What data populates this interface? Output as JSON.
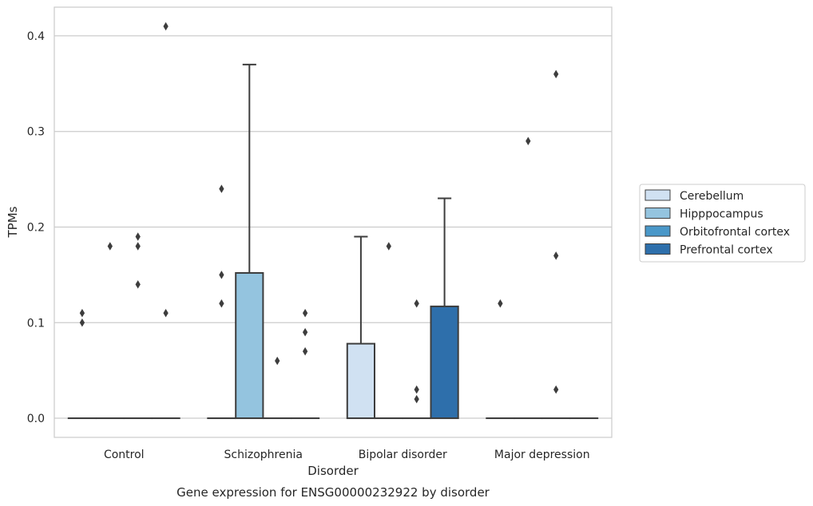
{
  "chart_data": {
    "type": "box",
    "title": "",
    "caption": "Gene expression for ENSG00000232922 by disorder",
    "xlabel": "Disorder",
    "ylabel": "TPMs",
    "ylim": [
      -0.02,
      0.43
    ],
    "yticks": [
      0.0,
      0.1,
      0.2,
      0.3,
      0.4
    ],
    "ytick_labels": [
      "0.0",
      "0.1",
      "0.2",
      "0.3",
      "0.4"
    ],
    "grid": "horizontal",
    "legend_position": "right",
    "categories": [
      "Control",
      "Schizophrenia",
      "Bipolar disorder",
      "Major depression"
    ],
    "series": [
      {
        "name": "Cerebellum",
        "color": "#d0e1f2",
        "boxes": [
          {
            "category": "Control",
            "q1": 0,
            "median": 0,
            "q3": 0,
            "whisker_low": 0,
            "whisker_high": 0,
            "fliers": [
              0.1,
              0.11
            ]
          },
          {
            "category": "Schizophrenia",
            "q1": 0,
            "median": 0,
            "q3": 0,
            "whisker_low": 0,
            "whisker_high": 0,
            "fliers": [
              0.12,
              0.15,
              0.24
            ]
          },
          {
            "category": "Bipolar disorder",
            "q1": 0,
            "median": 0,
            "q3": 0.078,
            "whisker_low": 0,
            "whisker_high": 0.19,
            "fliers": []
          },
          {
            "category": "Major depression",
            "q1": 0,
            "median": 0,
            "q3": 0,
            "whisker_low": 0,
            "whisker_high": 0,
            "fliers": [
              0.12
            ]
          }
        ]
      },
      {
        "name": "Hipppocampus",
        "color": "#94c4df",
        "boxes": [
          {
            "category": "Control",
            "q1": 0,
            "median": 0,
            "q3": 0,
            "whisker_low": 0,
            "whisker_high": 0,
            "fliers": [
              0.18
            ]
          },
          {
            "category": "Schizophrenia",
            "q1": 0,
            "median": 0,
            "q3": 0.152,
            "whisker_low": 0,
            "whisker_high": 0.37,
            "fliers": []
          },
          {
            "category": "Bipolar disorder",
            "q1": 0,
            "median": 0,
            "q3": 0,
            "whisker_low": 0,
            "whisker_high": 0,
            "fliers": [
              0.18
            ]
          },
          {
            "category": "Major depression",
            "q1": 0,
            "median": 0,
            "q3": 0,
            "whisker_low": 0,
            "whisker_high": 0,
            "fliers": [
              0.29
            ]
          }
        ]
      },
      {
        "name": "Orbitofrontal cortex",
        "color": "#4a98c9",
        "boxes": [
          {
            "category": "Control",
            "q1": 0,
            "median": 0,
            "q3": 0,
            "whisker_low": 0,
            "whisker_high": 0,
            "fliers": [
              0.14,
              0.18,
              0.19
            ]
          },
          {
            "category": "Schizophrenia",
            "q1": 0,
            "median": 0,
            "q3": 0,
            "whisker_low": 0,
            "whisker_high": 0,
            "fliers": [
              0.06
            ]
          },
          {
            "category": "Bipolar disorder",
            "q1": 0,
            "median": 0,
            "q3": 0,
            "whisker_low": 0,
            "whisker_high": 0,
            "fliers": [
              0.02,
              0.03,
              0.12
            ]
          },
          {
            "category": "Major depression",
            "q1": 0,
            "median": 0,
            "q3": 0,
            "whisker_low": 0,
            "whisker_high": 0,
            "fliers": [
              0.03,
              0.17,
              0.36
            ]
          }
        ]
      },
      {
        "name": "Prefrontal cortex",
        "color": "#2e6fab",
        "boxes": [
          {
            "category": "Control",
            "q1": 0,
            "median": 0,
            "q3": 0,
            "whisker_low": 0,
            "whisker_high": 0,
            "fliers": [
              0.11,
              0.41
            ]
          },
          {
            "category": "Schizophrenia",
            "q1": 0,
            "median": 0,
            "q3": 0,
            "whisker_low": 0,
            "whisker_high": 0,
            "fliers": [
              0.07,
              0.09,
              0.11
            ]
          },
          {
            "category": "Bipolar disorder",
            "q1": 0,
            "median": 0,
            "q3": 0.117,
            "whisker_low": 0,
            "whisker_high": 0.23,
            "fliers": []
          },
          {
            "category": "Major depression",
            "q1": 0,
            "median": 0,
            "q3": 0,
            "whisker_low": 0,
            "whisker_high": 0,
            "fliers": []
          }
        ]
      }
    ]
  }
}
